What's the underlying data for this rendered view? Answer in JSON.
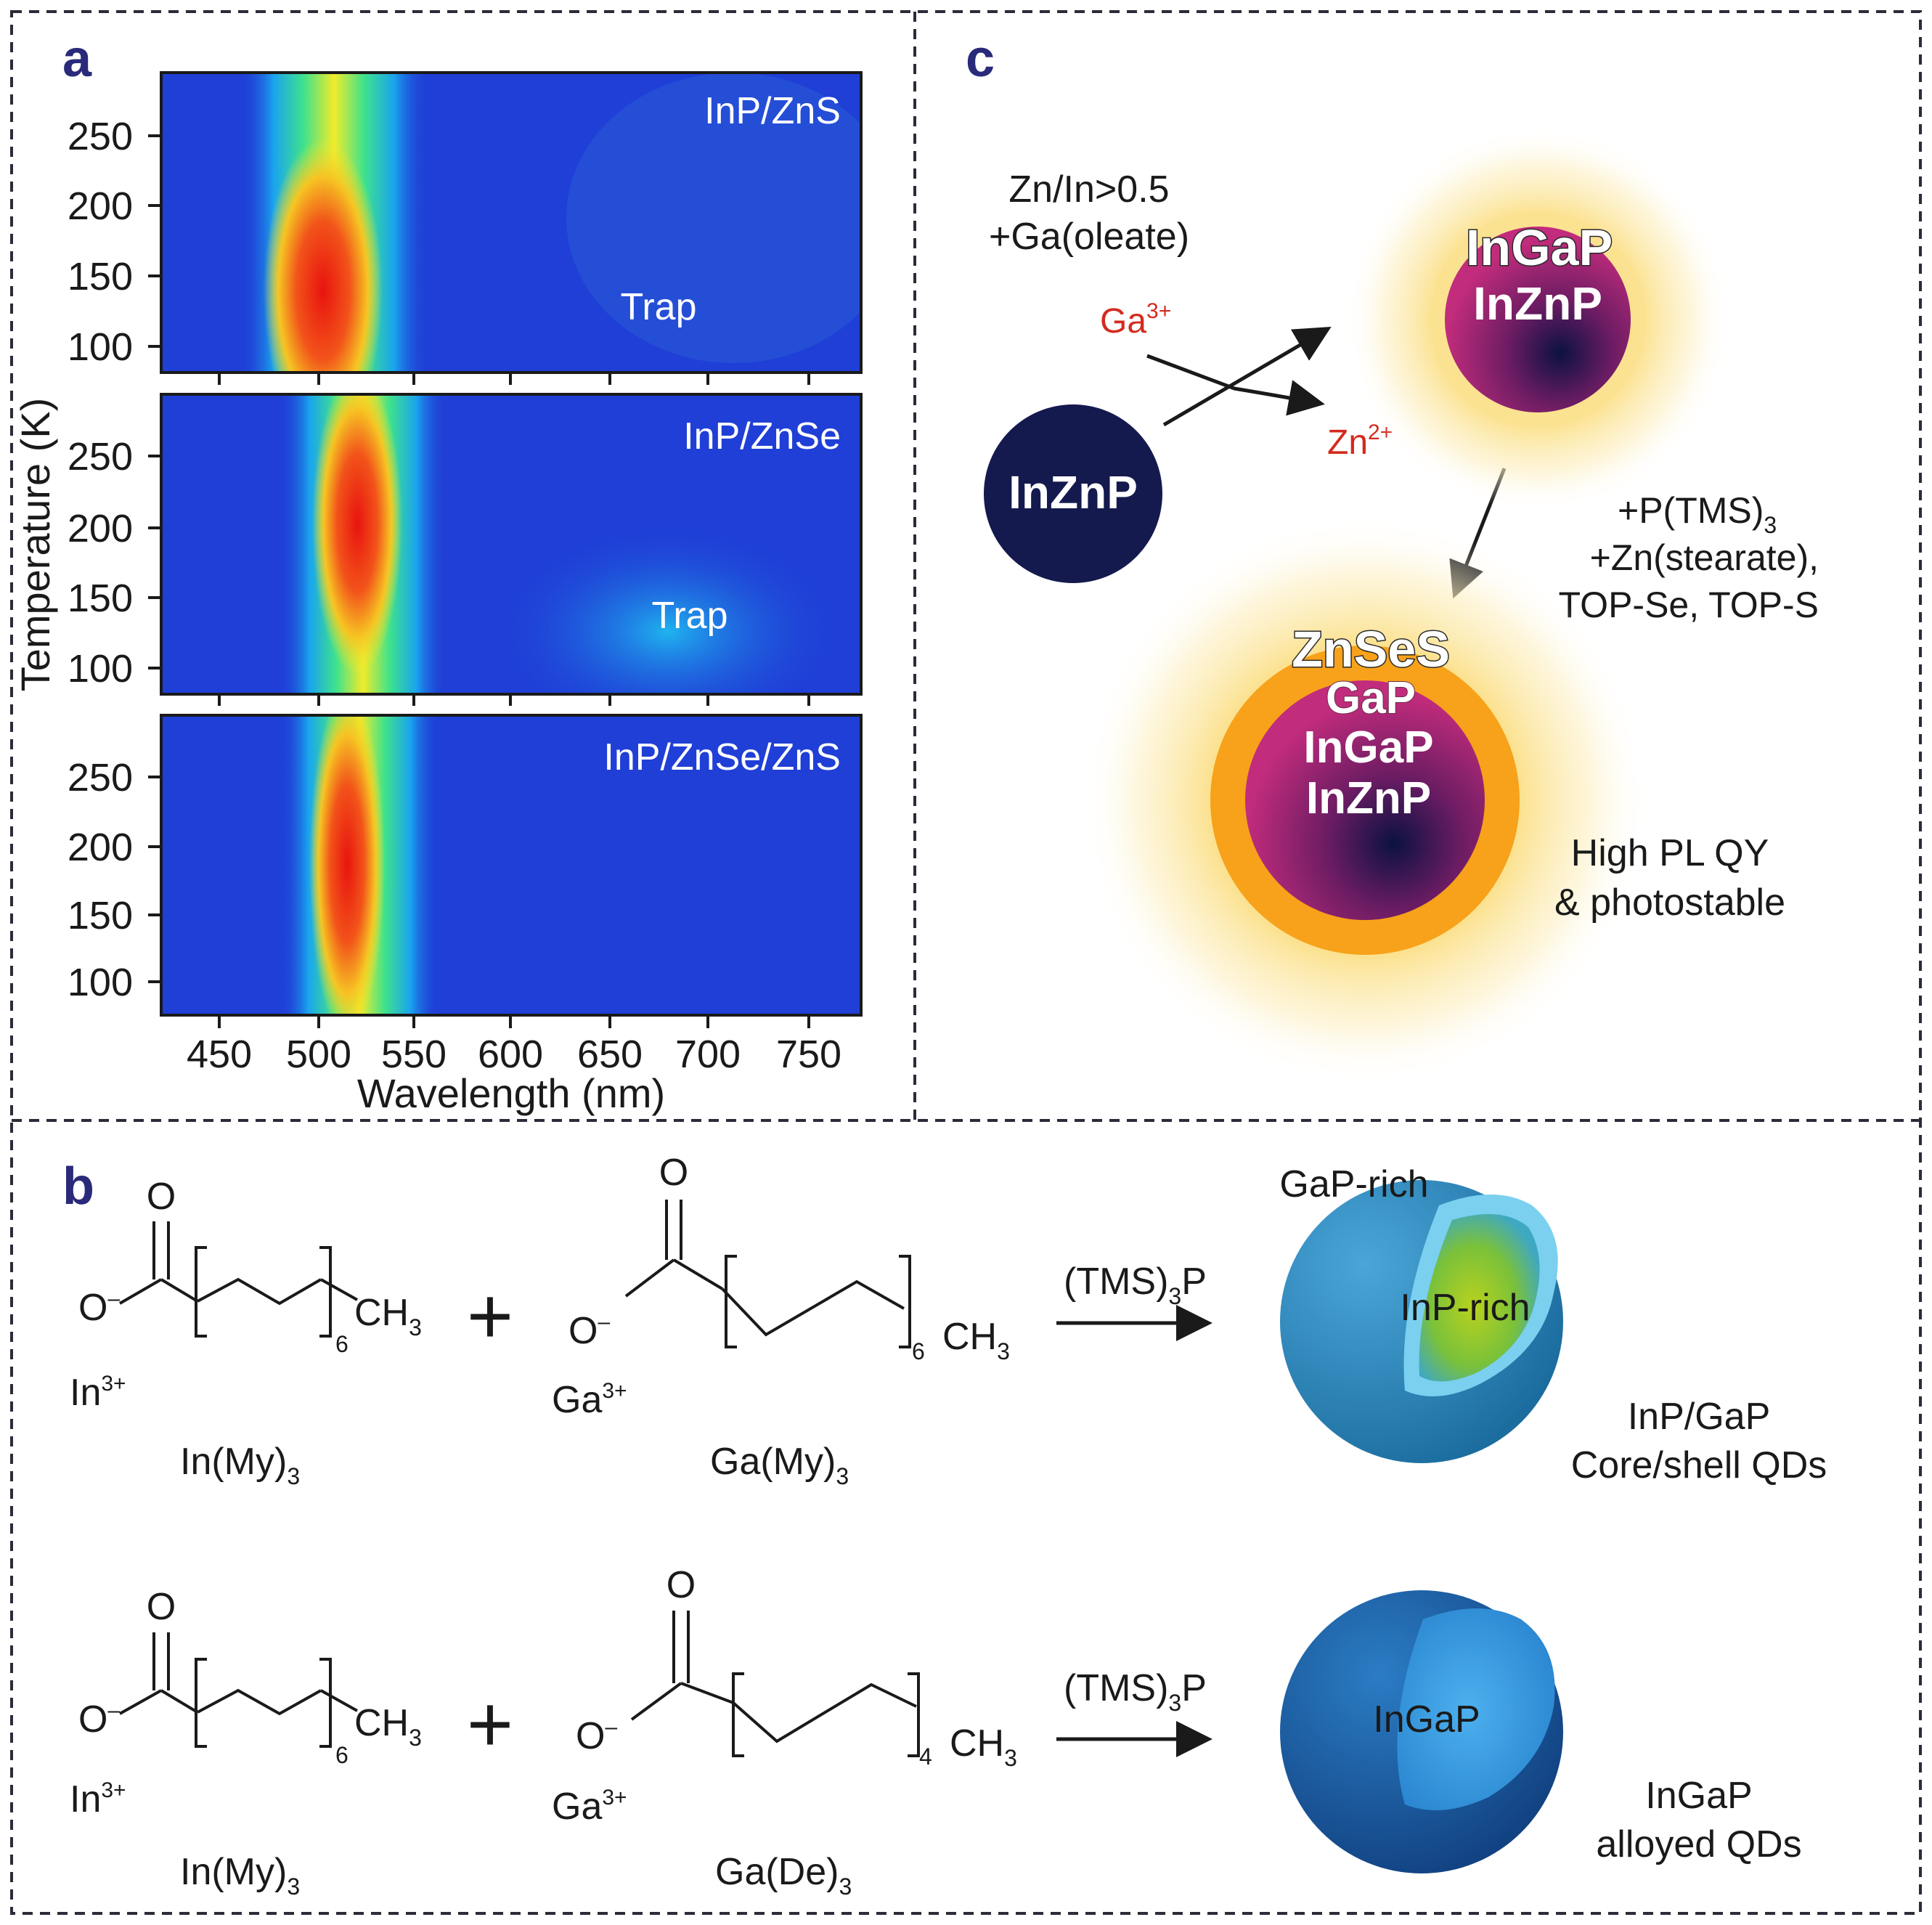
{
  "panel_labels": {
    "a": "a",
    "b": "b",
    "c": "c"
  },
  "panel_a": {
    "ylabel": "Temperature (K)",
    "xlabel": "Wavelength (nm)",
    "y_ticks": [
      "250",
      "200",
      "150",
      "100"
    ],
    "x_ticks": [
      "450",
      "500",
      "550",
      "600",
      "650",
      "700",
      "750"
    ],
    "subplots": [
      {
        "title": "InP/ZnS",
        "trap": "Trap"
      },
      {
        "title": "InP/ZnSe",
        "trap": "Trap"
      },
      {
        "title": "InP/ZnSe/ZnS",
        "trap": ""
      }
    ]
  },
  "chart_data": [
    {
      "type": "heatmap",
      "title": "InP/ZnS",
      "xlabel": "Wavelength (nm)",
      "ylabel": "Temperature (K)",
      "xlim": [
        420,
        780
      ],
      "ylim": [
        80,
        295
      ],
      "peak": [
        {
          "temperature": 100,
          "wavelength": 498
        },
        {
          "temperature": 150,
          "wavelength": 500
        },
        {
          "temperature": 200,
          "wavelength": 503
        },
        {
          "temperature": 250,
          "wavelength": 506
        }
      ],
      "annotations": [
        "Trap"
      ]
    },
    {
      "type": "heatmap",
      "title": "InP/ZnSe",
      "xlabel": "Wavelength (nm)",
      "ylabel": "Temperature (K)",
      "xlim": [
        420,
        780
      ],
      "ylim": [
        80,
        295
      ],
      "peak": [
        {
          "temperature": 100,
          "wavelength": 512
        },
        {
          "temperature": 150,
          "wavelength": 515
        },
        {
          "temperature": 200,
          "wavelength": 518
        },
        {
          "temperature": 250,
          "wavelength": 523
        }
      ],
      "annotations": [
        "Trap"
      ]
    },
    {
      "type": "heatmap",
      "title": "InP/ZnSe/ZnS",
      "xlabel": "Wavelength (nm)",
      "ylabel": "Temperature (K)",
      "xlim": [
        420,
        780
      ],
      "ylim": [
        80,
        295
      ],
      "peak": [
        {
          "temperature": 100,
          "wavelength": 510
        },
        {
          "temperature": 150,
          "wavelength": 514
        },
        {
          "temperature": 200,
          "wavelength": 518
        },
        {
          "temperature": 250,
          "wavelength": 522
        }
      ],
      "annotations": []
    }
  ],
  "panel_c": {
    "condition_line1": "Zn/In>0.5",
    "condition_line2": "+Ga(oleate)",
    "ga_ion": "Ga",
    "ga_charge": "3+",
    "zn_ion": "Zn",
    "zn_charge": "2+",
    "start_core": "InZnP",
    "mid_outer": "InGaP",
    "mid_inner": "InZnP",
    "step2_line1": "+P(TMS)",
    "step2_line1_sub": "3",
    "step2_line2": "+Zn(stearate),",
    "step2_line3": "TOP-Se, TOP-S",
    "final_shell": "ZnSeS",
    "final_l2": "GaP",
    "final_l3": "InGaP",
    "final_l4": "InZnP",
    "result_line1": "High PL QY",
    "result_line2": "& photostable",
    "colors": {
      "ion_red": "#d42a1e",
      "core_navy": "#141a4e",
      "shell_orange": "#f7a21a"
    }
  },
  "panel_b": {
    "oxygen": "O",
    "anion": "O",
    "anion_charge": "–",
    "ch3": "CH",
    "ch3_sub": "3",
    "in_ion": "In",
    "in_charge": "3+",
    "ga_ion": "Ga",
    "ga_charge": "3+",
    "reagent": "(TMS)",
    "reagent_sub": "3",
    "reagent_end": "P",
    "row1": {
      "repeat_in": "6",
      "repeat_ga": "6",
      "in_name": "In(My)",
      "in_name_sub": "3",
      "ga_name": "Ga(My)",
      "ga_name_sub": "3",
      "shell_label": "GaP-rich",
      "core_label": "InP-rich",
      "result_line1": "InP/GaP",
      "result_line2": "Core/shell QDs"
    },
    "row2": {
      "repeat_in": "6",
      "repeat_ga": "4",
      "in_name": "In(My)",
      "in_name_sub": "3",
      "ga_name": "Ga(De)",
      "ga_name_sub": "3",
      "core_label": "InGaP",
      "result_line1": "InGaP",
      "result_line2": "alloyed QDs"
    }
  }
}
